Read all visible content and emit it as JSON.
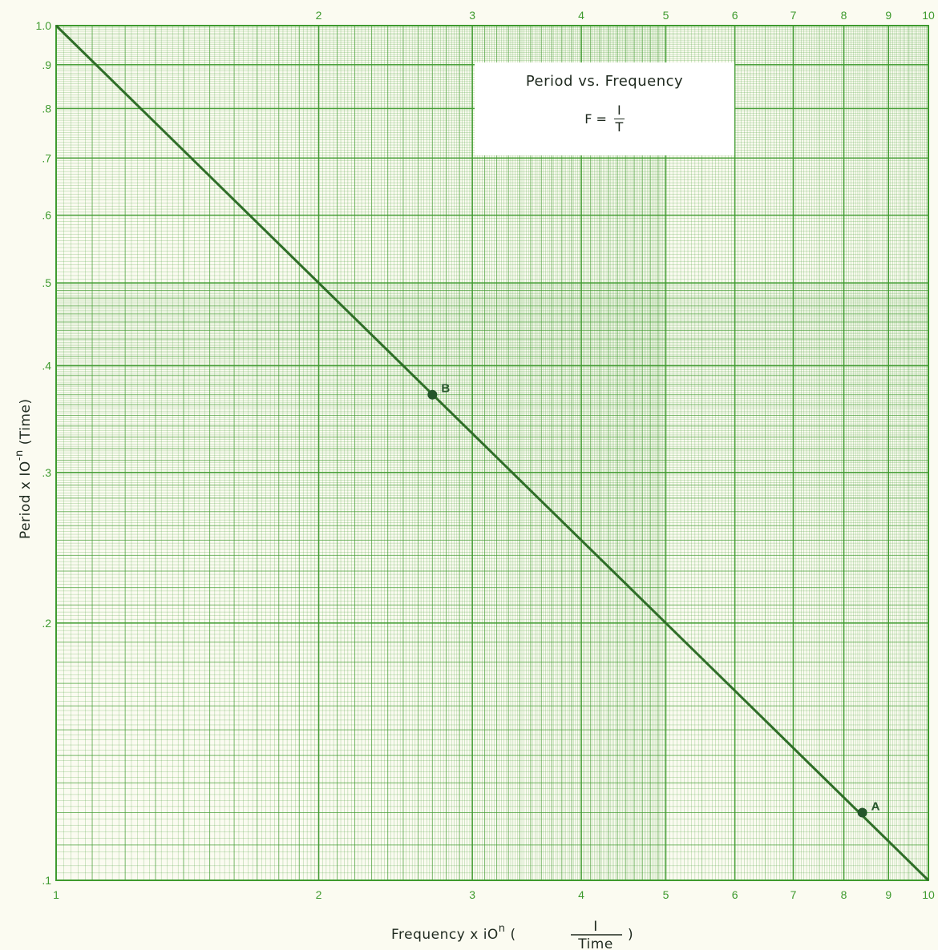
{
  "chart_data": {
    "type": "line",
    "title": "Period vs. Frequency",
    "formula": {
      "lhs": "F =",
      "numerator": "I",
      "denominator": "T"
    },
    "xlabel": {
      "prefix": "Frequency  x  iO",
      "sup": "n",
      "frac_open": "(",
      "frac_num": "I",
      "frac_den": "Time",
      "frac_close": ")"
    },
    "ylabel": {
      "prefix": "Period x  IO",
      "sup": "-n",
      "suffix": " (Time)"
    },
    "x_scale": "log",
    "y_scale": "log",
    "xlim": [
      1,
      10
    ],
    "ylim": [
      0.1,
      1.0
    ],
    "grid": true,
    "x_ticks_bottom": [
      {
        "value": 1,
        "label": "1"
      },
      {
        "value": 2,
        "label": "2"
      },
      {
        "value": 3,
        "label": "3"
      },
      {
        "value": 4,
        "label": "4"
      },
      {
        "value": 5,
        "label": "5"
      },
      {
        "value": 6,
        "label": "6"
      },
      {
        "value": 7,
        "label": "7"
      },
      {
        "value": 8,
        "label": "8"
      },
      {
        "value": 9,
        "label": "9"
      },
      {
        "value": 10,
        "label": "10"
      }
    ],
    "x_ticks_top": [
      {
        "value": 2,
        "label": "2"
      },
      {
        "value": 3,
        "label": "3"
      },
      {
        "value": 4,
        "label": "4"
      },
      {
        "value": 5,
        "label": "5"
      },
      {
        "value": 6,
        "label": "6"
      },
      {
        "value": 7,
        "label": "7"
      },
      {
        "value": 8,
        "label": "8"
      },
      {
        "value": 9,
        "label": "9"
      },
      {
        "value": 10,
        "label": "10"
      }
    ],
    "y_ticks": [
      {
        "value": 1.0,
        "label": "1.0"
      },
      {
        "value": 0.9,
        "label": ".9"
      },
      {
        "value": 0.8,
        "label": ".8"
      },
      {
        "value": 0.7,
        "label": ".7"
      },
      {
        "value": 0.6,
        "label": ".6"
      },
      {
        "value": 0.5,
        "label": ".5"
      },
      {
        "value": 0.4,
        "label": ".4"
      },
      {
        "value": 0.3,
        "label": ".3"
      },
      {
        "value": 0.2,
        "label": ".2"
      },
      {
        "value": 0.1,
        "label": ".1"
      }
    ],
    "series": [
      {
        "x": [
          1,
          10
        ],
        "y": [
          1.0,
          0.1
        ]
      }
    ],
    "points": [
      {
        "label": "B",
        "x": 2.7,
        "y": 0.37
      },
      {
        "label": "A",
        "x": 8.4,
        "y": 0.12
      }
    ],
    "colors": {
      "grid": "#3e9a2e",
      "line": "#2f6e28",
      "background": "#fbfbf1"
    }
  }
}
